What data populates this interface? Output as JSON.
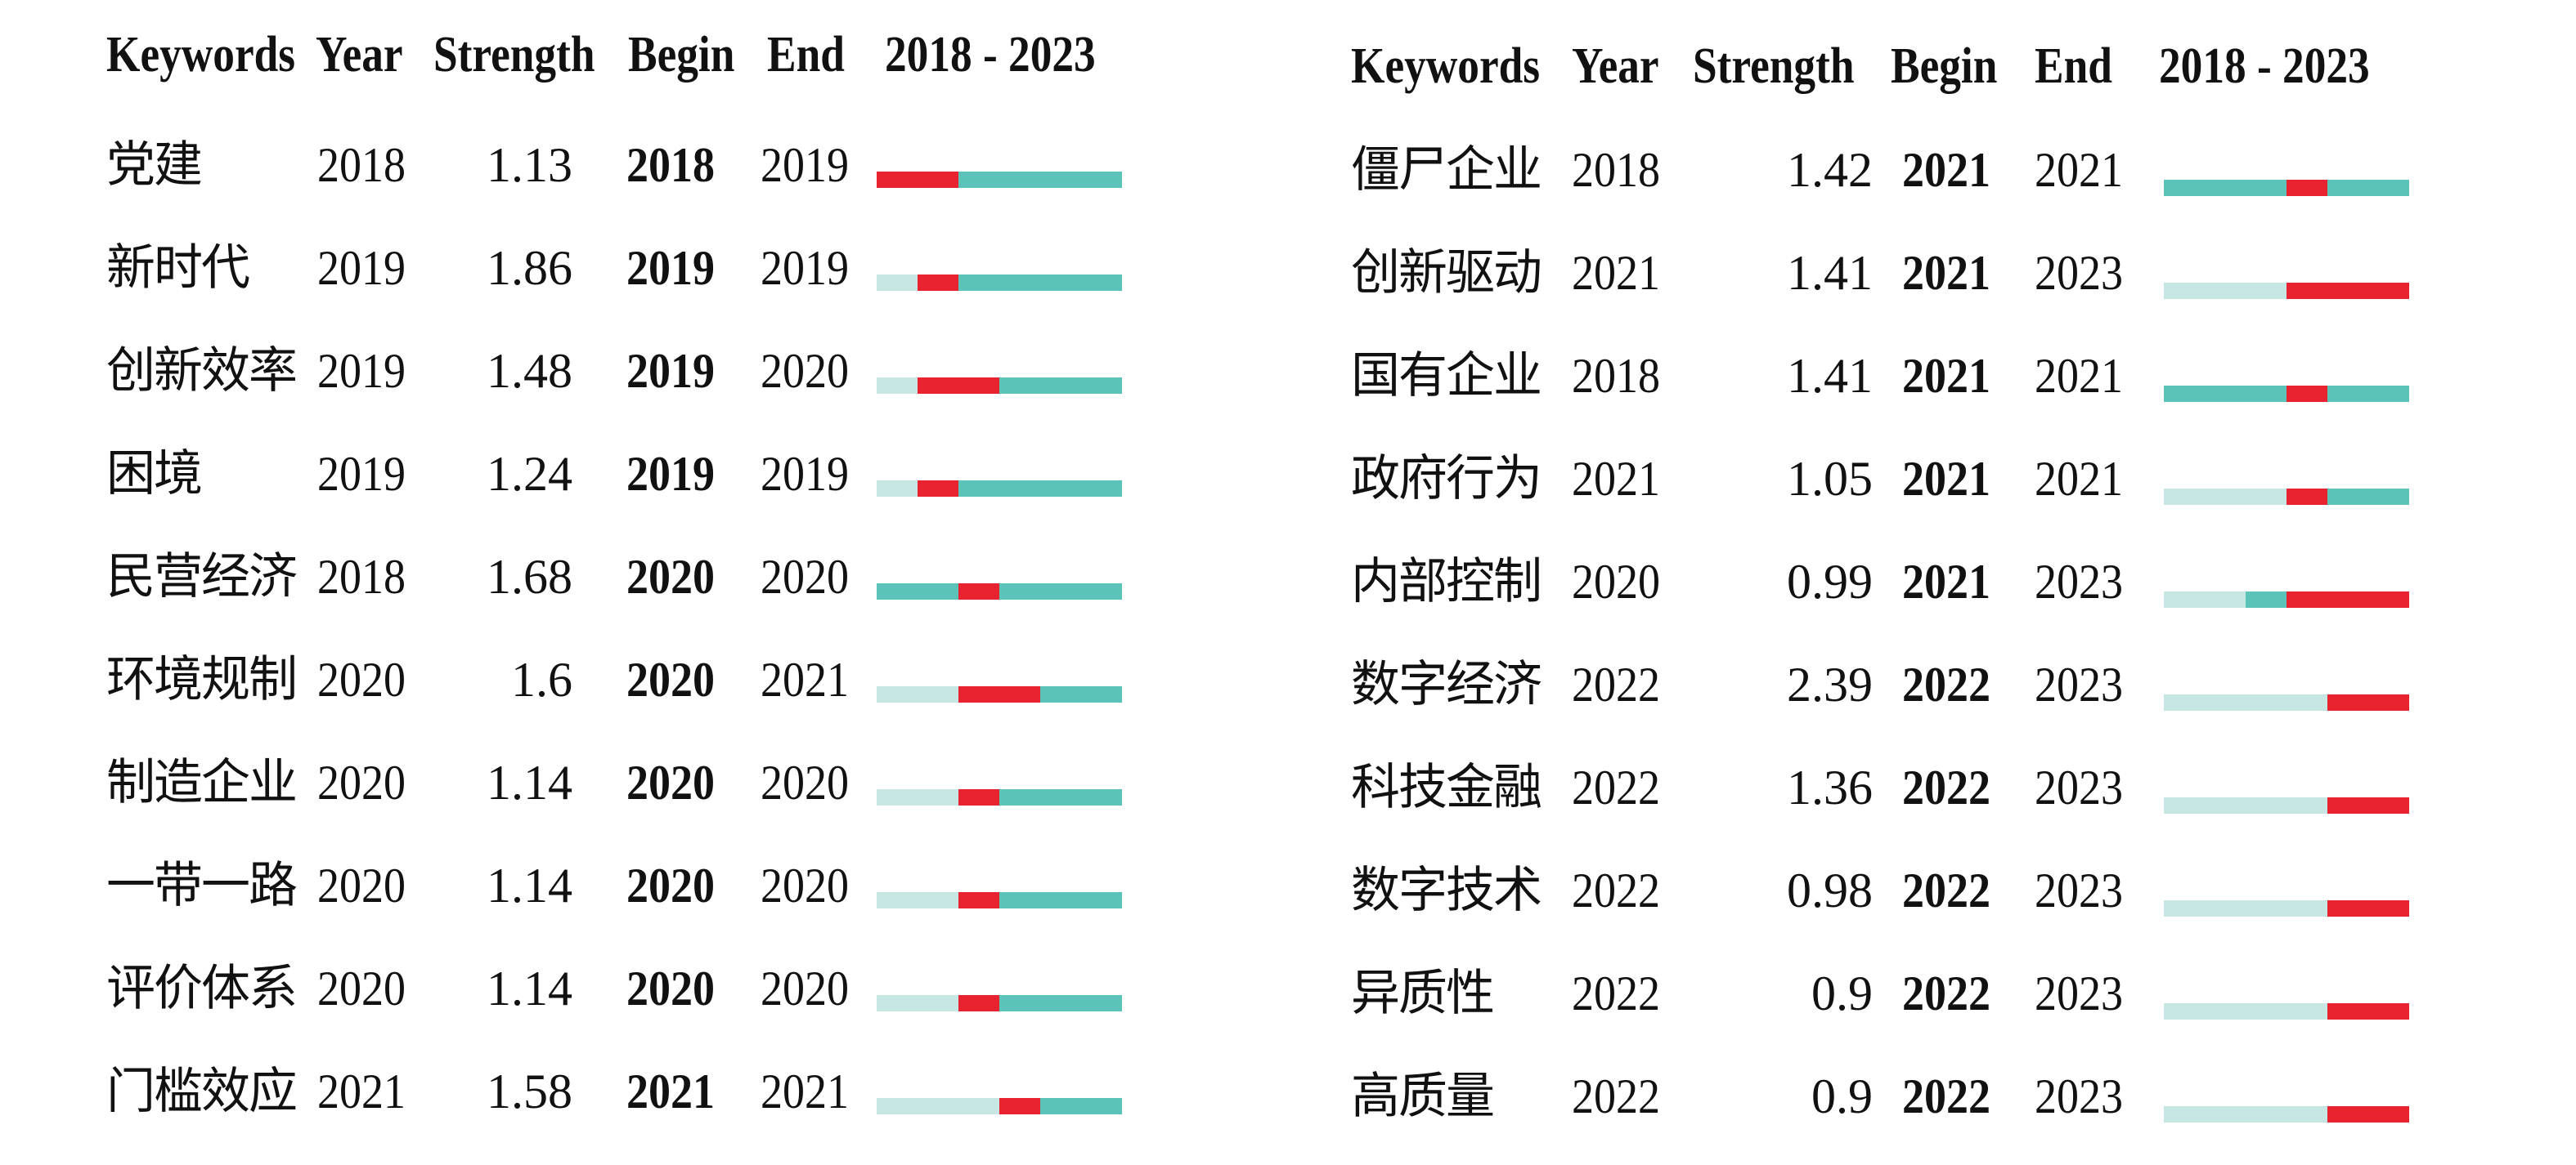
{
  "colors": {
    "light": "#c5e6e3",
    "teal": "#5cc3b9",
    "red": "#e8222e"
  },
  "timeline": {
    "start": 2018,
    "end": 2023
  },
  "headers": {
    "keywords": "Keywords",
    "year": "Year",
    "strength": "Strength",
    "begin": "Begin",
    "end": "End",
    "range": "2018 - 2023"
  },
  "chart_data": [
    {
      "type": "table",
      "columns": [
        "Keywords",
        "Year",
        "Strength",
        "Begin",
        "End",
        "2018 - 2023"
      ],
      "rows": [
        {
          "keyword": "党建",
          "year": "2018",
          "strength": "1.13",
          "begin": "2018",
          "end": "2019"
        },
        {
          "keyword": "新时代",
          "year": "2019",
          "strength": "1.86",
          "begin": "2019",
          "end": "2019"
        },
        {
          "keyword": "创新效率",
          "year": "2019",
          "strength": "1.48",
          "begin": "2019",
          "end": "2020"
        },
        {
          "keyword": "困境",
          "year": "2019",
          "strength": "1.24",
          "begin": "2019",
          "end": "2019"
        },
        {
          "keyword": "民营经济",
          "year": "2018",
          "strength": "1.68",
          "begin": "2020",
          "end": "2020"
        },
        {
          "keyword": "环境规制",
          "year": "2020",
          "strength": "1.6",
          "begin": "2020",
          "end": "2021"
        },
        {
          "keyword": "制造企业",
          "year": "2020",
          "strength": "1.14",
          "begin": "2020",
          "end": "2020"
        },
        {
          "keyword": "一带一路",
          "year": "2020",
          "strength": "1.14",
          "begin": "2020",
          "end": "2020"
        },
        {
          "keyword": "评价体系",
          "year": "2020",
          "strength": "1.14",
          "begin": "2020",
          "end": "2020"
        },
        {
          "keyword": "门槛效应",
          "year": "2021",
          "strength": "1.58",
          "begin": "2021",
          "end": "2021"
        }
      ]
    },
    {
      "type": "table",
      "columns": [
        "Keywords",
        "Year",
        "Strength",
        "Begin",
        "End",
        "2018 - 2023"
      ],
      "rows": [
        {
          "keyword": "僵尸企业",
          "year": "2018",
          "strength": "1.42",
          "begin": "2021",
          "end": "2021"
        },
        {
          "keyword": "创新驱动",
          "year": "2021",
          "strength": "1.41",
          "begin": "2021",
          "end": "2023"
        },
        {
          "keyword": "国有企业",
          "year": "2018",
          "strength": "1.41",
          "begin": "2021",
          "end": "2021"
        },
        {
          "keyword": "政府行为",
          "year": "2021",
          "strength": "1.05",
          "begin": "2021",
          "end": "2021"
        },
        {
          "keyword": "内部控制",
          "year": "2020",
          "strength": "0.99",
          "begin": "2021",
          "end": "2023"
        },
        {
          "keyword": "数字经济",
          "year": "2022",
          "strength": "2.39",
          "begin": "2022",
          "end": "2023"
        },
        {
          "keyword": "科技金融",
          "year": "2022",
          "strength": "1.36",
          "begin": "2022",
          "end": "2023"
        },
        {
          "keyword": "数字技术",
          "year": "2022",
          "strength": "0.98",
          "begin": "2022",
          "end": "2023"
        },
        {
          "keyword": "异质性",
          "year": "2022",
          "strength": "0.9",
          "begin": "2022",
          "end": "2023"
        },
        {
          "keyword": "高质量",
          "year": "2022",
          "strength": "0.9",
          "begin": "2022",
          "end": "2023"
        }
      ]
    }
  ]
}
